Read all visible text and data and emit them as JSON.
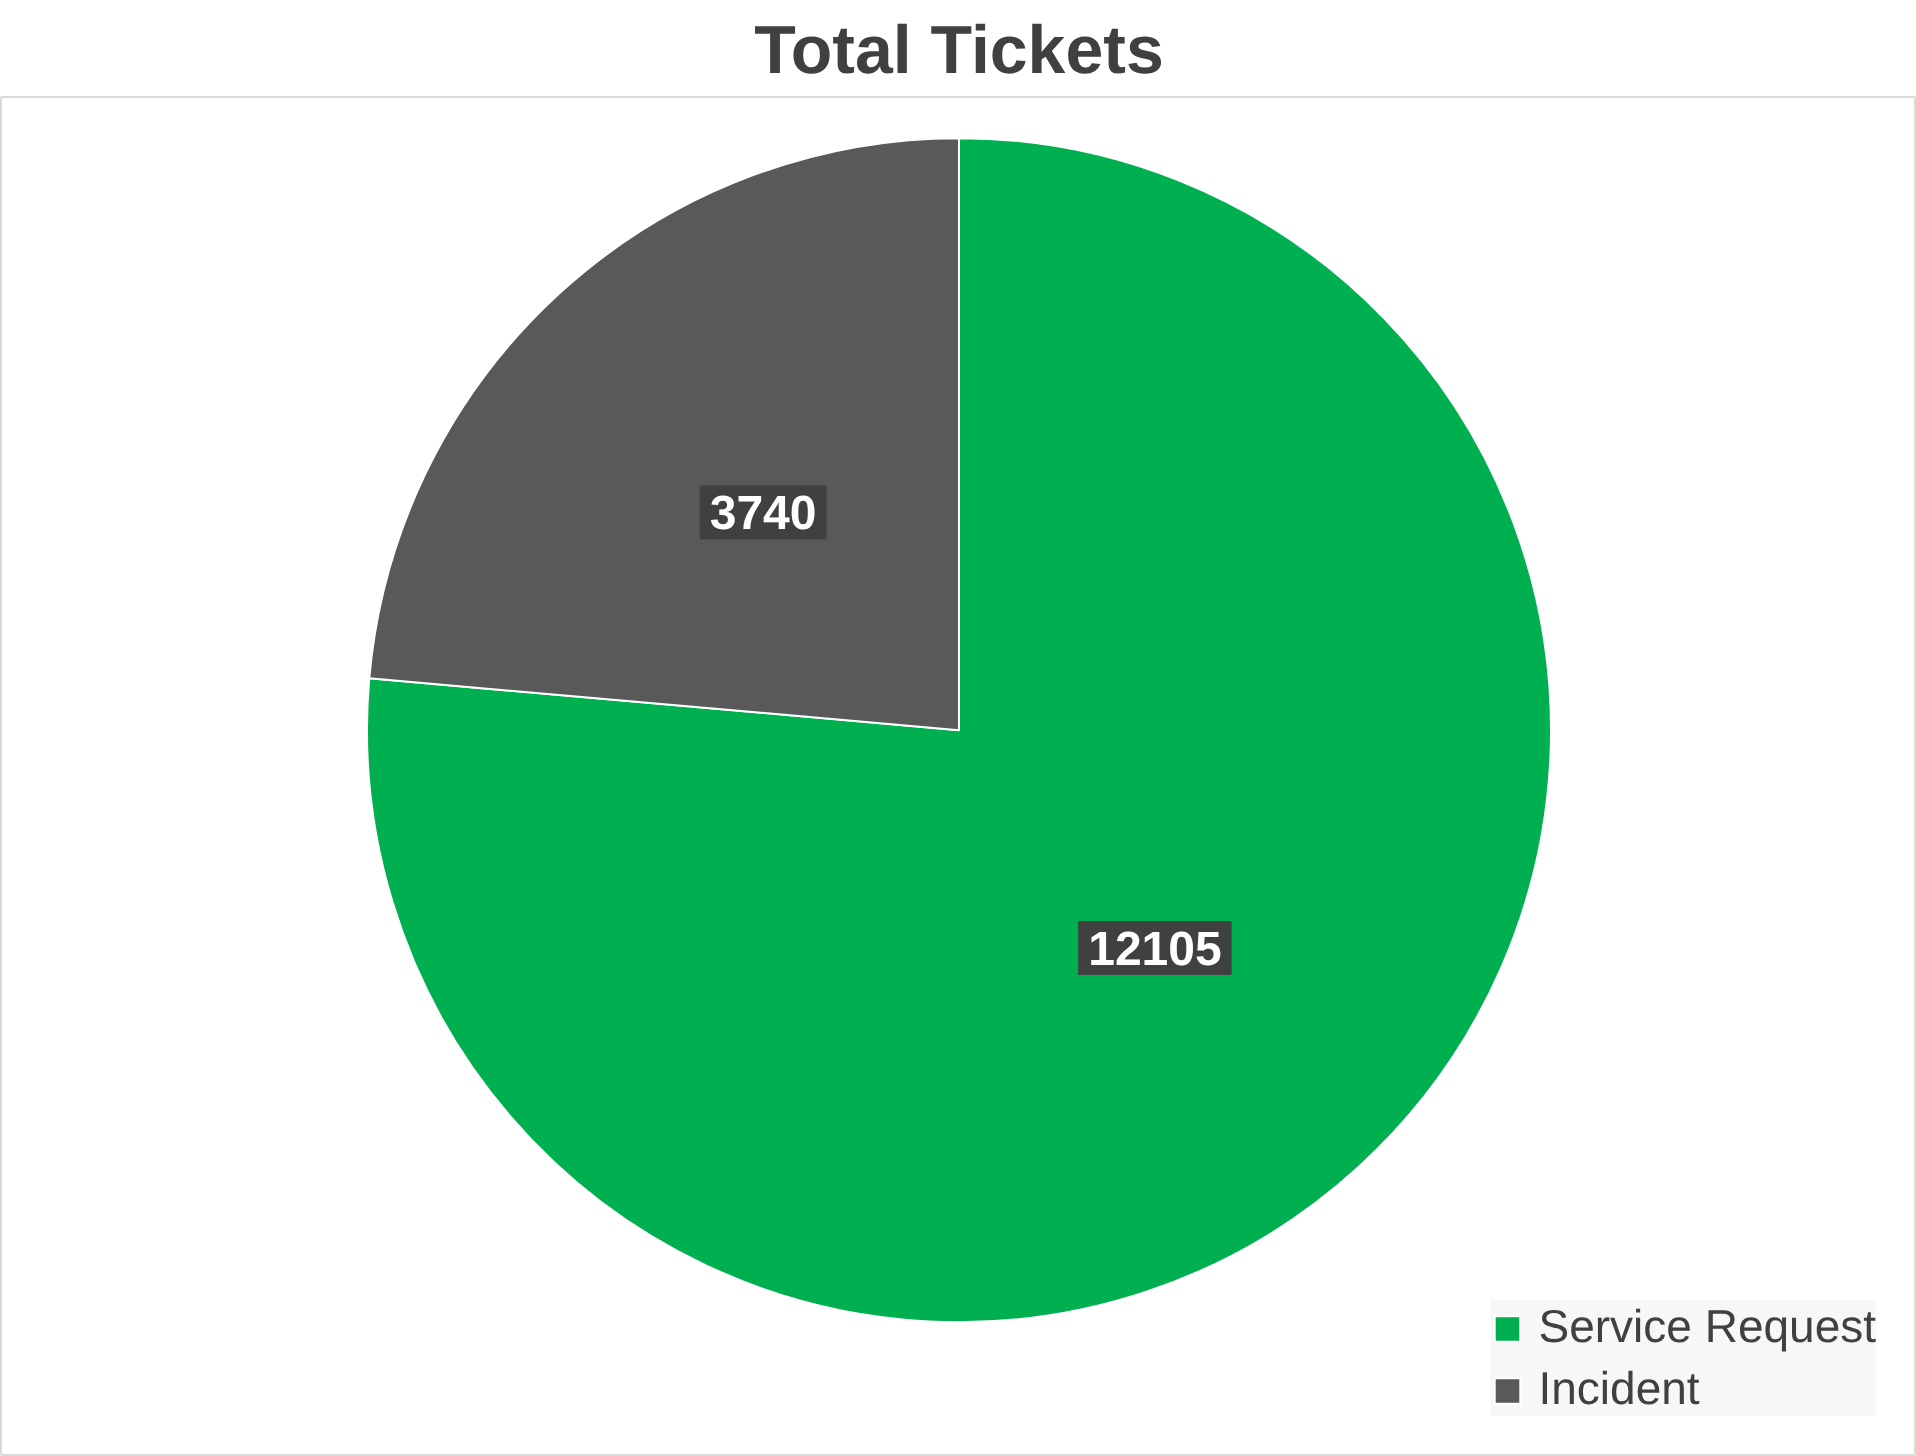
{
  "chart_data": {
    "type": "pie",
    "title": "Total Tickets",
    "categories": [
      "Service Request",
      "Incident"
    ],
    "values": [
      12105,
      3740
    ],
    "colors": [
      "#00b050",
      "#595959"
    ],
    "data_labels": true,
    "legend": "bottom right"
  }
}
